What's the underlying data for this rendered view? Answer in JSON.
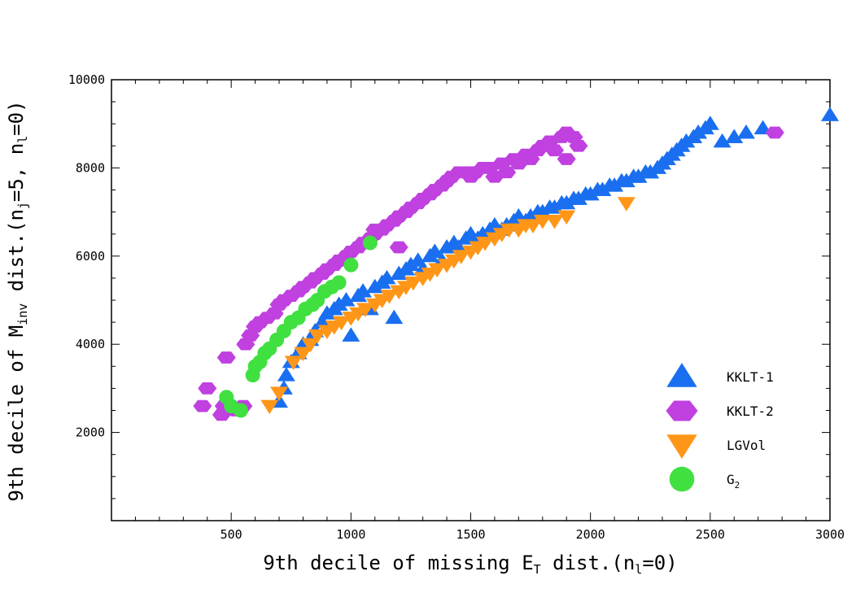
{
  "chart_data": {
    "type": "scatter",
    "xlim": [
      0,
      3000
    ],
    "ylim": [
      0,
      10000
    ],
    "xticks": [
      500,
      1000,
      1500,
      2000,
      2500,
      3000
    ],
    "yticks": [
      2000,
      4000,
      6000,
      8000,
      10000
    ],
    "xticks_minor_step": 100,
    "yticks_minor_step": 500,
    "xlabel": {
      "pre": "9th decile of missing E",
      "sub": "T",
      "post": " dist.(n",
      "sub2": "l",
      "post2": "=0)"
    },
    "ylabel": {
      "pre": "9th decile of M",
      "sub": "inv",
      "post": " dist.(n",
      "sub2": "j",
      "post2": "=5, n",
      "sub3": "l",
      "post3": "=0)"
    },
    "legend_position": "bottom-right",
    "grid": false,
    "series": [
      {
        "name": "KKLT-1",
        "marker": "triangle-up",
        "color": "#1a6ff0",
        "points": [
          [
            700,
            2700
          ],
          [
            720,
            3000
          ],
          [
            730,
            3300
          ],
          [
            750,
            3600
          ],
          [
            780,
            3800
          ],
          [
            800,
            4000
          ],
          [
            830,
            4100
          ],
          [
            850,
            4300
          ],
          [
            880,
            4500
          ],
          [
            900,
            4700
          ],
          [
            930,
            4800
          ],
          [
            950,
            4900
          ],
          [
            980,
            5000
          ],
          [
            1000,
            4200
          ],
          [
            1030,
            5100
          ],
          [
            1050,
            5200
          ],
          [
            1080,
            4800
          ],
          [
            1100,
            5300
          ],
          [
            1130,
            5400
          ],
          [
            1150,
            5500
          ],
          [
            1180,
            4600
          ],
          [
            1200,
            5600
          ],
          [
            1230,
            5700
          ],
          [
            1250,
            5800
          ],
          [
            1280,
            5900
          ],
          [
            1300,
            5700
          ],
          [
            1330,
            6000
          ],
          [
            1350,
            6100
          ],
          [
            1380,
            5900
          ],
          [
            1400,
            6200
          ],
          [
            1430,
            6300
          ],
          [
            1450,
            6200
          ],
          [
            1480,
            6400
          ],
          [
            1500,
            6500
          ],
          [
            1530,
            6400
          ],
          [
            1550,
            6500
          ],
          [
            1580,
            6600
          ],
          [
            1600,
            6700
          ],
          [
            1630,
            6600
          ],
          [
            1650,
            6700
          ],
          [
            1680,
            6800
          ],
          [
            1700,
            6900
          ],
          [
            1730,
            6800
          ],
          [
            1750,
            6900
          ],
          [
            1780,
            7000
          ],
          [
            1800,
            7000
          ],
          [
            1830,
            7100
          ],
          [
            1850,
            7100
          ],
          [
            1880,
            7200
          ],
          [
            1900,
            7200
          ],
          [
            1930,
            7300
          ],
          [
            1950,
            7300
          ],
          [
            1980,
            7400
          ],
          [
            2000,
            7400
          ],
          [
            2030,
            7500
          ],
          [
            2050,
            7500
          ],
          [
            2080,
            7600
          ],
          [
            2100,
            7600
          ],
          [
            2130,
            7700
          ],
          [
            2150,
            7700
          ],
          [
            2180,
            7800
          ],
          [
            2200,
            7800
          ],
          [
            2230,
            7900
          ],
          [
            2250,
            7900
          ],
          [
            2280,
            8000
          ],
          [
            2300,
            8100
          ],
          [
            2320,
            8200
          ],
          [
            2340,
            8300
          ],
          [
            2360,
            8400
          ],
          [
            2380,
            8500
          ],
          [
            2400,
            8600
          ],
          [
            2430,
            8700
          ],
          [
            2450,
            8800
          ],
          [
            2480,
            8900
          ],
          [
            2500,
            9000
          ],
          [
            2550,
            8600
          ],
          [
            2600,
            8700
          ],
          [
            2650,
            8800
          ],
          [
            2720,
            8900
          ],
          [
            3000,
            9200
          ]
        ]
      },
      {
        "name": "KKLT-2",
        "marker": "hexagon",
        "color": "#c040e0",
        "points": [
          [
            380,
            2600
          ],
          [
            400,
            3000
          ],
          [
            460,
            2400
          ],
          [
            470,
            2600
          ],
          [
            480,
            3700
          ],
          [
            500,
            2600
          ],
          [
            520,
            2500
          ],
          [
            550,
            2600
          ],
          [
            560,
            4000
          ],
          [
            580,
            4200
          ],
          [
            600,
            4400
          ],
          [
            620,
            4500
          ],
          [
            650,
            4600
          ],
          [
            680,
            4700
          ],
          [
            700,
            4900
          ],
          [
            720,
            5000
          ],
          [
            750,
            5100
          ],
          [
            780,
            5200
          ],
          [
            800,
            5300
          ],
          [
            830,
            5400
          ],
          [
            850,
            5500
          ],
          [
            880,
            5600
          ],
          [
            900,
            5700
          ],
          [
            930,
            5800
          ],
          [
            950,
            5900
          ],
          [
            980,
            6000
          ],
          [
            1000,
            6100
          ],
          [
            1030,
            6200
          ],
          [
            1050,
            6300
          ],
          [
            1080,
            6400
          ],
          [
            1100,
            6500
          ],
          [
            1130,
            6600
          ],
          [
            1150,
            6700
          ],
          [
            1180,
            6800
          ],
          [
            1200,
            6900
          ],
          [
            1230,
            7000
          ],
          [
            1250,
            7100
          ],
          [
            1280,
            7200
          ],
          [
            1300,
            7300
          ],
          [
            1330,
            7400
          ],
          [
            1350,
            7500
          ],
          [
            1380,
            7600
          ],
          [
            1400,
            7700
          ],
          [
            1420,
            7800
          ],
          [
            1450,
            7900
          ],
          [
            1480,
            7900
          ],
          [
            1500,
            7800
          ],
          [
            1520,
            7900
          ],
          [
            1550,
            8000
          ],
          [
            1580,
            8000
          ],
          [
            1600,
            7800
          ],
          [
            1630,
            8100
          ],
          [
            1650,
            7900
          ],
          [
            1680,
            8200
          ],
          [
            1700,
            8100
          ],
          [
            1730,
            8300
          ],
          [
            1750,
            8200
          ],
          [
            1780,
            8400
          ],
          [
            1800,
            8500
          ],
          [
            1830,
            8600
          ],
          [
            1850,
            8400
          ],
          [
            1880,
            8700
          ],
          [
            1900,
            8800
          ],
          [
            1930,
            8700
          ],
          [
            1950,
            8500
          ],
          [
            1900,
            8200
          ],
          [
            1100,
            6600
          ],
          [
            1200,
            6200
          ],
          [
            2770,
            8800
          ]
        ]
      },
      {
        "name": "LGVol",
        "marker": "triangle-down",
        "color": "#ff9618",
        "points": [
          [
            660,
            2600
          ],
          [
            700,
            2900
          ],
          [
            760,
            3600
          ],
          [
            800,
            3800
          ],
          [
            830,
            4000
          ],
          [
            860,
            4200
          ],
          [
            900,
            4300
          ],
          [
            930,
            4400
          ],
          [
            960,
            4500
          ],
          [
            1000,
            4600
          ],
          [
            1030,
            4700
          ],
          [
            1060,
            4800
          ],
          [
            1100,
            4900
          ],
          [
            1130,
            5000
          ],
          [
            1160,
            5100
          ],
          [
            1200,
            5200
          ],
          [
            1230,
            5300
          ],
          [
            1260,
            5400
          ],
          [
            1300,
            5500
          ],
          [
            1330,
            5600
          ],
          [
            1360,
            5700
          ],
          [
            1400,
            5800
          ],
          [
            1430,
            5900
          ],
          [
            1460,
            6000
          ],
          [
            1500,
            6100
          ],
          [
            1530,
            6200
          ],
          [
            1560,
            6300
          ],
          [
            1600,
            6400
          ],
          [
            1630,
            6500
          ],
          [
            1660,
            6600
          ],
          [
            1700,
            6600
          ],
          [
            1730,
            6700
          ],
          [
            1760,
            6700
          ],
          [
            1800,
            6800
          ],
          [
            1850,
            6800
          ],
          [
            1900,
            6900
          ],
          [
            2150,
            7200
          ]
        ]
      },
      {
        "name": "G",
        "marker": "circle",
        "color": "#40e040",
        "points": [
          [
            480,
            2800
          ],
          [
            500,
            2600
          ],
          [
            540,
            2500
          ],
          [
            590,
            3300
          ],
          [
            600,
            3500
          ],
          [
            620,
            3600
          ],
          [
            640,
            3800
          ],
          [
            660,
            3900
          ],
          [
            690,
            4100
          ],
          [
            720,
            4300
          ],
          [
            750,
            4500
          ],
          [
            780,
            4600
          ],
          [
            810,
            4800
          ],
          [
            840,
            4900
          ],
          [
            860,
            5000
          ],
          [
            890,
            5200
          ],
          [
            920,
            5300
          ],
          [
            950,
            5400
          ],
          [
            1000,
            5800
          ],
          [
            1080,
            6300
          ]
        ]
      }
    ],
    "legend": [
      {
        "label": "KKLT-1",
        "marker": "triangle-up",
        "color": "#1a6ff0"
      },
      {
        "label": "KKLT-2",
        "marker": "hexagon",
        "color": "#c040e0"
      },
      {
        "label": "LGVol",
        "marker": "triangle-down",
        "color": "#ff9618"
      },
      {
        "label": "G",
        "sub": "2",
        "marker": "circle",
        "color": "#40e040"
      }
    ]
  }
}
